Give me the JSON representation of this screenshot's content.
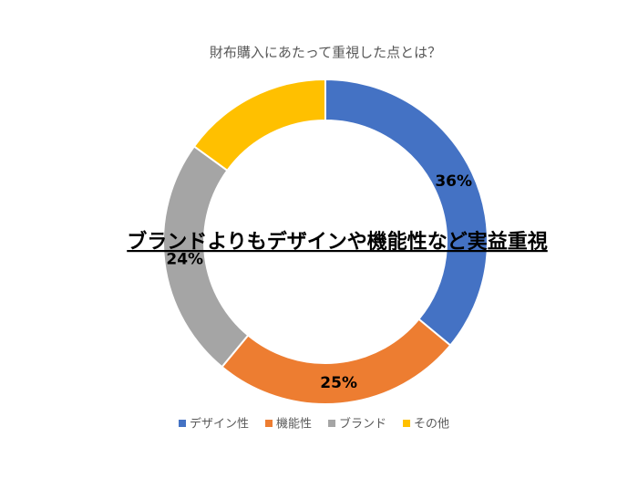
{
  "chart_data": {
    "type": "donut",
    "title": "財布購入にあたって重視した点とは？",
    "annotation": "ブランドよりもデザインや機能性など実益重視",
    "categories": [
      "デザイン性",
      "機能性",
      "ブランド",
      "その他"
    ],
    "values": [
      36,
      25,
      24,
      15
    ],
    "value_labels": [
      "36%",
      "25%",
      "24%",
      null
    ],
    "colors": [
      "#4472c4",
      "#ed7d31",
      "#a5a5a5",
      "#ffc000"
    ],
    "legend": "bottom"
  }
}
